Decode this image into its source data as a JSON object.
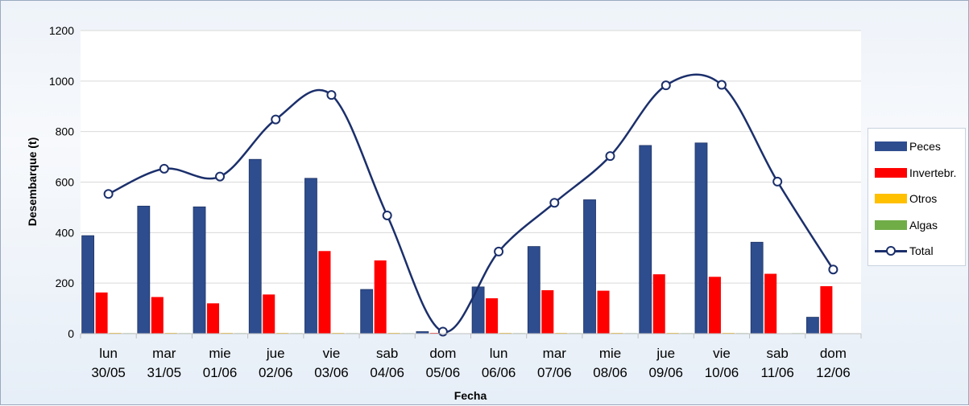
{
  "chart_data": {
    "type": "bar",
    "xlabel": "Fecha",
    "ylabel": "Desembarque (t)",
    "ylim": [
      0,
      1200
    ],
    "yticks": [
      0,
      200,
      400,
      600,
      800,
      1000,
      1200
    ],
    "grid": true,
    "legend_position": "right",
    "categories": [
      {
        "day": "lun",
        "date": "30/05"
      },
      {
        "day": "mar",
        "date": "31/05"
      },
      {
        "day": "mie",
        "date": "01/06"
      },
      {
        "day": "jue",
        "date": "02/06"
      },
      {
        "day": "vie",
        "date": "03/06"
      },
      {
        "day": "sab",
        "date": "04/06"
      },
      {
        "day": "dom",
        "date": "05/06"
      },
      {
        "day": "lun",
        "date": "06/06"
      },
      {
        "day": "mar",
        "date": "07/06"
      },
      {
        "day": "mie",
        "date": "08/06"
      },
      {
        "day": "jue",
        "date": "09/06"
      },
      {
        "day": "vie",
        "date": "10/06"
      },
      {
        "day": "sab",
        "date": "11/06"
      },
      {
        "day": "dom",
        "date": "12/06"
      }
    ],
    "series": [
      {
        "name": "Peces",
        "type": "bar",
        "color": "#2e4d8f",
        "values": [
          388,
          505,
          502,
          690,
          615,
          175,
          8,
          185,
          345,
          530,
          745,
          755,
          362,
          65
        ]
      },
      {
        "name": "Invertebr.",
        "type": "bar",
        "color": "#ff0000",
        "values": [
          163,
          145,
          120,
          155,
          327,
          290,
          3,
          140,
          172,
          170,
          235,
          225,
          237,
          188
        ]
      },
      {
        "name": "Otros",
        "type": "bar",
        "color": "#ffc000",
        "values": [
          3,
          3,
          3,
          3,
          3,
          3,
          1,
          3,
          3,
          3,
          3,
          3,
          1,
          1
        ]
      },
      {
        "name": "Algas",
        "type": "bar",
        "color": "#70ad47",
        "values": [
          2,
          2,
          2,
          2,
          2,
          2,
          0,
          2,
          2,
          2,
          2,
          2,
          2,
          0
        ]
      },
      {
        "name": "Total",
        "type": "line",
        "color": "#1b2f6b",
        "values": [
          553,
          653,
          622,
          848,
          945,
          468,
          8,
          325,
          518,
          703,
          983,
          985,
          602,
          254
        ]
      }
    ]
  }
}
